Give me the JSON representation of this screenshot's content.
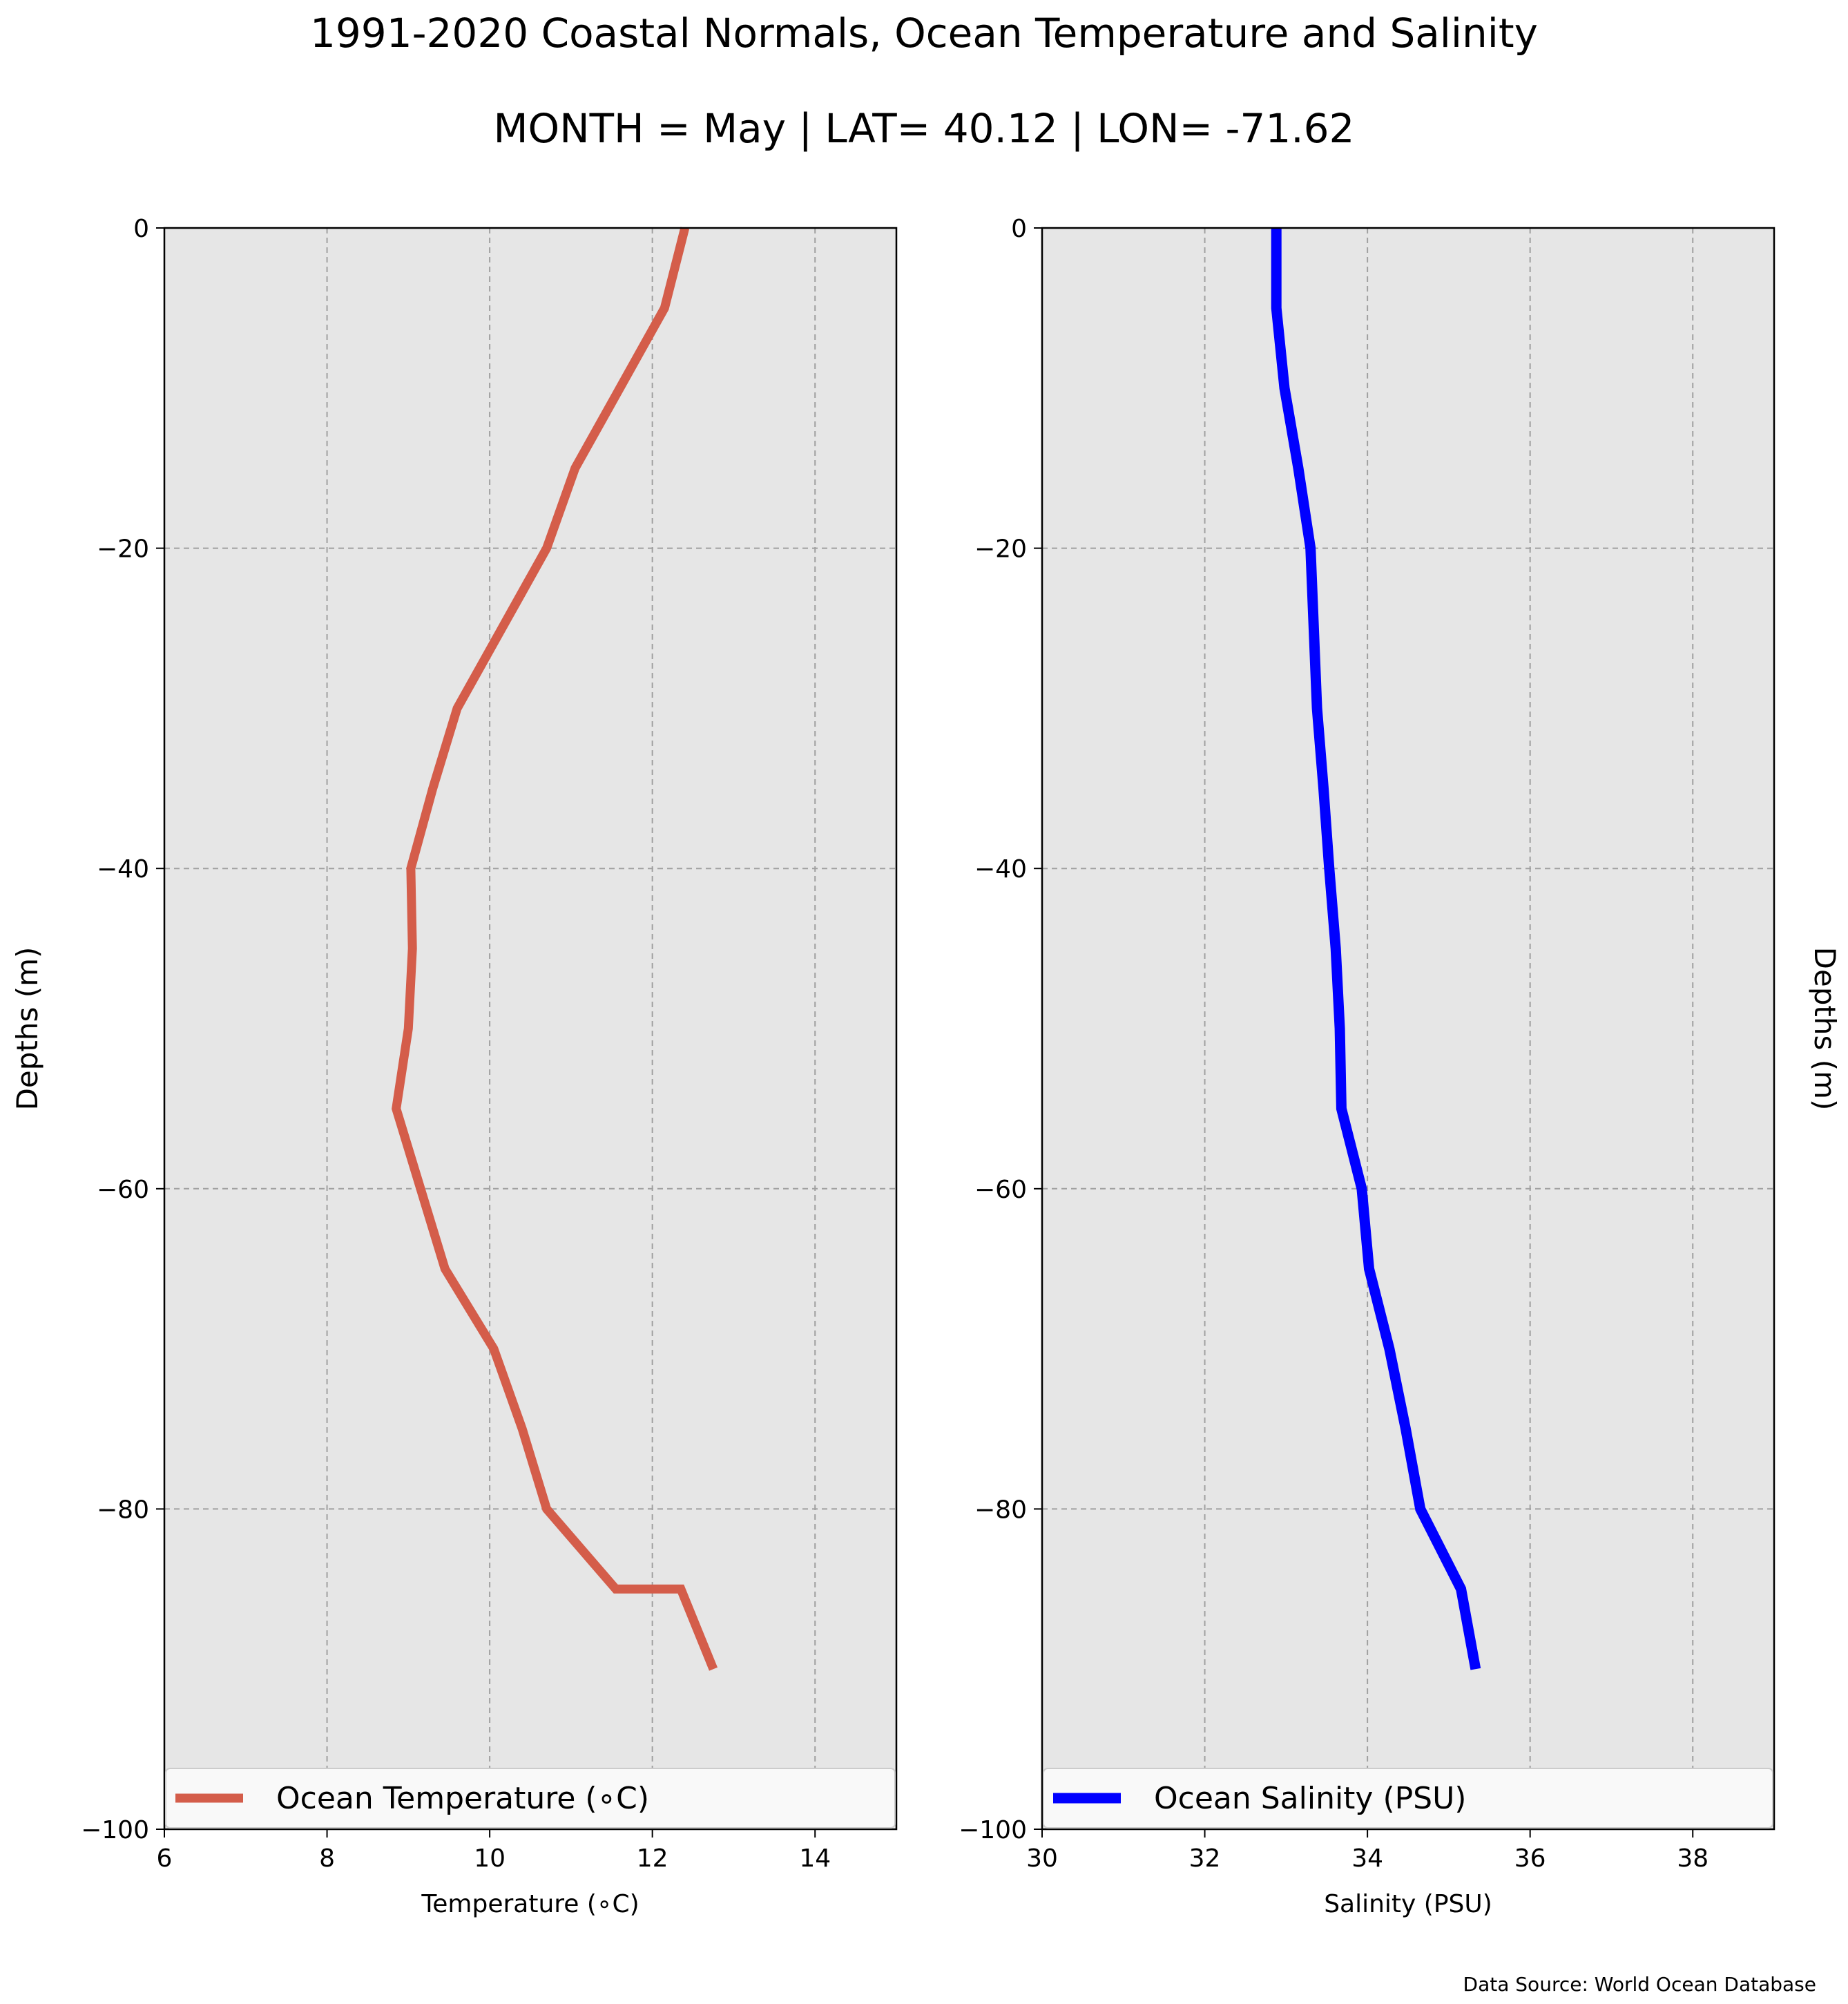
{
  "figure": {
    "title_line_1": "1991-2020 Coastal Normals, Ocean Temperature and Salinity",
    "title_line_2": "MONTH = May | LAT= 40.12 | LON= -71.62",
    "source_note": "Data Source: World Ocean Database",
    "plot_background": "#e6e6e6",
    "grid_color": "#a0a0a0"
  },
  "chart_data": [
    {
      "type": "line",
      "xlabel": "Temperature ($^\\circ$C)",
      "xlabel_display": "Temperature (∘C)",
      "ylabel": "Depths (m)",
      "xlim": [
        6,
        15
      ],
      "ylim": [
        -100,
        0
      ],
      "xticks": [
        "6",
        "8",
        "10",
        "12",
        "14"
      ],
      "yticks": [
        "0",
        "−20",
        "−40",
        "−60",
        "−80",
        "−100"
      ],
      "grid": true,
      "legend_position": "bottom",
      "series": [
        {
          "name": "Ocean Temperature (∘C)",
          "color": "#d45d4a",
          "x": [
            12.4,
            12.15,
            11.6,
            11.05,
            10.7,
            10.15,
            9.6,
            9.3,
            9.03,
            9.05,
            9.0,
            8.85,
            9.15,
            9.45,
            10.05,
            10.4,
            10.7,
            11.55,
            12.35,
            12.75
          ],
          "y": [
            0,
            -5,
            -10,
            -15,
            -20,
            -25,
            -30,
            -35,
            -40,
            -45,
            -50,
            -55,
            -60,
            -65,
            -70,
            -75,
            -80,
            -85,
            -85,
            -90
          ]
        }
      ]
    },
    {
      "type": "line",
      "xlabel": "Salinity (PSU)",
      "ylabel": "Depths (m)",
      "xlim": [
        30,
        39
      ],
      "ylim": [
        -100,
        0
      ],
      "xticks": [
        "30",
        "32",
        "34",
        "36",
        "38"
      ],
      "yticks": [
        "0",
        "−20",
        "−40",
        "−60",
        "−80",
        "−100"
      ],
      "grid": true,
      "legend_position": "bottom",
      "series": [
        {
          "name": "Ocean Salinity (PSU)",
          "color": "#0000ff",
          "x": [
            32.88,
            32.88,
            32.98,
            33.15,
            33.3,
            33.34,
            33.38,
            33.46,
            33.53,
            33.61,
            33.66,
            33.68,
            33.93,
            34.02,
            34.27,
            34.47,
            34.65,
            35.15,
            35.33
          ],
          "y": [
            0,
            -5,
            -10,
            -15,
            -20,
            -25,
            -30,
            -35,
            -40,
            -45,
            -50,
            -55,
            -60,
            -65,
            -70,
            -75,
            -80,
            -85,
            -90
          ]
        }
      ]
    }
  ]
}
